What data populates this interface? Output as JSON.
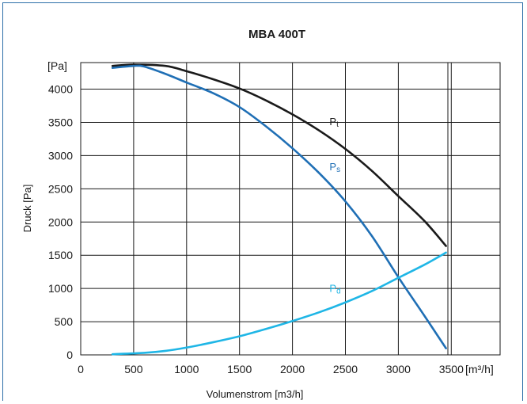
{
  "chart_data": {
    "type": "line",
    "title": "MBA 400T",
    "xlabel": "Volumenstrom [m3/h]",
    "ylabel": "Druck [Pa]",
    "x_unit_label": "[m³/h]",
    "y_unit_label": "[Pa]",
    "xlim": [
      0,
      3500
    ],
    "ylim": [
      0,
      4400
    ],
    "x_ticks": [
      0,
      500,
      1000,
      1500,
      2000,
      2500,
      3000,
      3500
    ],
    "y_ticks": [
      0,
      500,
      1000,
      1500,
      2000,
      2500,
      3000,
      3500,
      4000
    ],
    "grid": true,
    "series": [
      {
        "name": "Pt",
        "label_main": "P",
        "label_sub": "t",
        "color": "#1a1a1a",
        "x": [
          300,
          500,
          800,
          1000,
          1250,
          1500,
          1750,
          2000,
          2250,
          2500,
          2750,
          3000,
          3250,
          3450
        ],
        "y": [
          4350,
          4370,
          4350,
          4270,
          4150,
          4010,
          3830,
          3620,
          3380,
          3100,
          2770,
          2390,
          2010,
          1640
        ]
      },
      {
        "name": "Ps",
        "label_main": "P",
        "label_sub": "s",
        "color": "#1f6fb5",
        "x": [
          300,
          500,
          600,
          800,
          1000,
          1250,
          1500,
          1750,
          2000,
          2250,
          2500,
          2750,
          3000,
          3250,
          3450
        ],
        "y": [
          4320,
          4350,
          4340,
          4230,
          4100,
          3940,
          3730,
          3440,
          3110,
          2740,
          2310,
          1790,
          1170,
          580,
          100
        ]
      },
      {
        "name": "Pd",
        "label_main": "P",
        "label_sub": "d",
        "color": "#1fb6e6",
        "x": [
          300,
          600,
          800,
          1000,
          1250,
          1500,
          1750,
          2000,
          2250,
          2500,
          2750,
          3000,
          3250,
          3450
        ],
        "y": [
          10,
          30,
          60,
          110,
          190,
          280,
          390,
          510,
          640,
          790,
          960,
          1160,
          1360,
          1540
        ]
      }
    ]
  }
}
